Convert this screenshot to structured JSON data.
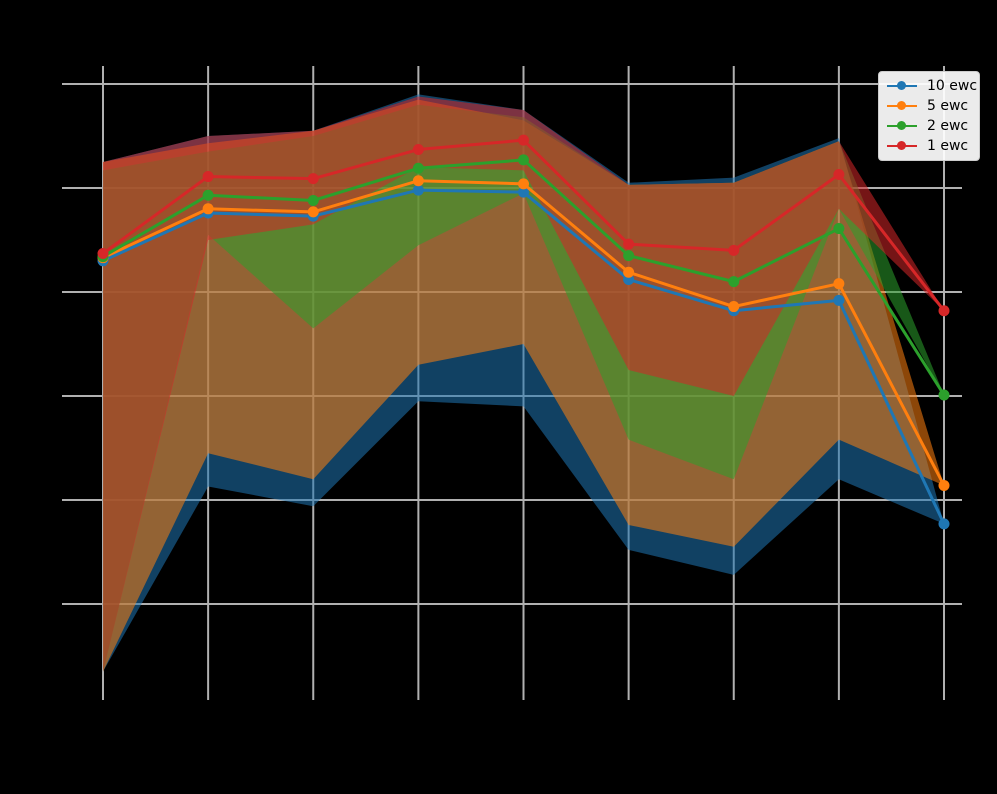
{
  "chart_data": {
    "type": "line",
    "title": "",
    "xlabel": "",
    "ylabel": "",
    "x": [
      1,
      2,
      3,
      4,
      5,
      6,
      7,
      8,
      9
    ],
    "ylim": [
      0.41,
      1.02
    ],
    "grid": true,
    "legend_position": "upper right",
    "series": [
      {
        "name": "10 ewc",
        "color": "#1f77b4",
        "values": [
          0.83,
          0.876,
          0.873,
          0.898,
          0.896,
          0.812,
          0.782,
          0.792,
          0.577
        ],
        "band_upper": [
          0.925,
          0.95,
          0.955,
          0.99,
          0.975,
          0.905,
          0.91,
          0.948,
          0.577
        ],
        "band_lower": [
          0.435,
          0.613,
          0.594,
          0.695,
          0.69,
          0.552,
          0.528,
          0.62,
          0.577
        ]
      },
      {
        "name": "5 ewc",
        "color": "#ff7f0e",
        "values": [
          0.833,
          0.88,
          0.877,
          0.907,
          0.904,
          0.819,
          0.786,
          0.808,
          0.614
        ],
        "band_upper": [
          0.925,
          0.943,
          0.955,
          0.985,
          0.965,
          0.903,
          0.905,
          0.945,
          0.614
        ],
        "band_lower": [
          0.435,
          0.645,
          0.62,
          0.73,
          0.75,
          0.576,
          0.555,
          0.658,
          0.614
        ]
      },
      {
        "name": "2 ewc",
        "color": "#2ca02c",
        "values": [
          0.834,
          0.893,
          0.888,
          0.919,
          0.927,
          0.835,
          0.81,
          0.861,
          0.701
        ],
        "band_upper": [
          0.917,
          0.935,
          0.95,
          0.98,
          0.968,
          0.903,
          0.905,
          0.945,
          0.701
        ],
        "band_lower": [
          0.435,
          0.855,
          0.765,
          0.845,
          0.895,
          0.658,
          0.62,
          0.88,
          0.701
        ]
      },
      {
        "name": "1 ewc",
        "color": "#d62728",
        "values": [
          0.837,
          0.911,
          0.909,
          0.937,
          0.946,
          0.846,
          0.84,
          0.913,
          0.782
        ],
        "band_upper": [
          0.925,
          0.95,
          0.955,
          0.988,
          0.975,
          0.903,
          0.905,
          0.945,
          0.782
        ],
        "band_lower": [
          0.435,
          0.85,
          0.865,
          0.92,
          0.917,
          0.725,
          0.7,
          0.88,
          0.782
        ]
      }
    ]
  },
  "legend": {
    "items": [
      {
        "label": "10 ewc",
        "color": "#1f77b4"
      },
      {
        "label": "5 ewc",
        "color": "#ff7f0e"
      },
      {
        "label": "2 ewc",
        "color": "#2ca02c"
      },
      {
        "label": "1 ewc",
        "color": "#d62728"
      }
    ]
  }
}
